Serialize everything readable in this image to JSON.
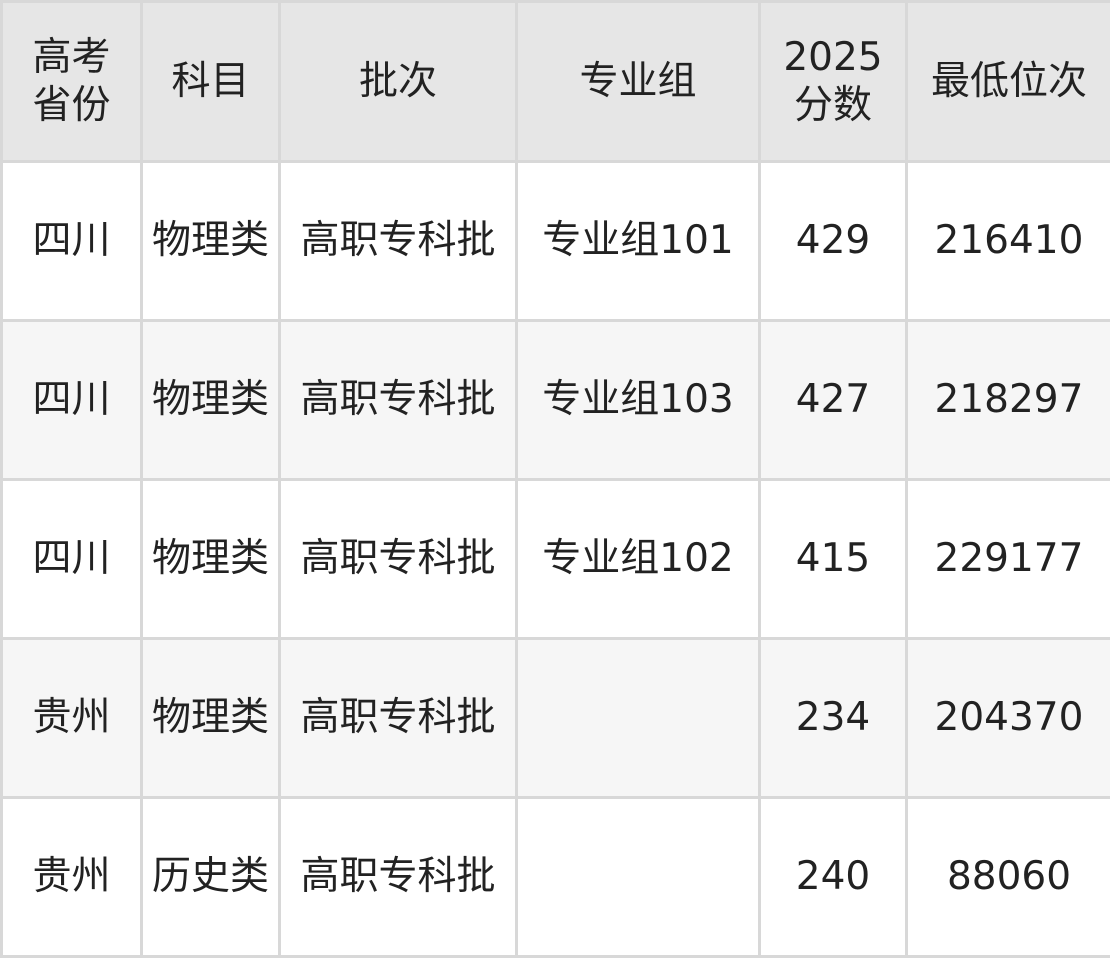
{
  "headers": [
    "高考省份",
    "科目",
    "批次",
    "专业组",
    "2025分数",
    "最低位次"
  ],
  "rows": [
    [
      "四川",
      "物理类",
      "高职专科批",
      "专业组101",
      "429",
      "216410"
    ],
    [
      "四川",
      "物理类",
      "高职专科批",
      "专业组103",
      "427",
      "218297"
    ],
    [
      "四川",
      "物理类",
      "高职专科批",
      "专业组102",
      "415",
      "229177"
    ],
    [
      "贵州",
      "物理类",
      "高职专科批",
      "",
      "234",
      "204370"
    ],
    [
      "贵州",
      "历史类",
      "高职专科批",
      "",
      "240",
      "88060"
    ]
  ]
}
